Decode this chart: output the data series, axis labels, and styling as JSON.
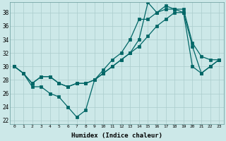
{
  "xlabel": "Humidex (Indice chaleur)",
  "background_color": "#cce8e8",
  "grid_color": "#aacccc",
  "line_color": "#006666",
  "xlim": [
    -0.5,
    23.5
  ],
  "ylim": [
    21.5,
    39.5
  ],
  "yticks": [
    22,
    24,
    26,
    28,
    30,
    32,
    34,
    36,
    38
  ],
  "xticks": [
    0,
    1,
    2,
    3,
    4,
    5,
    6,
    7,
    8,
    9,
    10,
    11,
    12,
    13,
    14,
    15,
    16,
    17,
    18,
    19,
    20,
    21,
    22,
    23
  ],
  "series1_x": [
    0,
    1,
    2,
    3,
    4,
    5,
    6,
    7,
    8,
    9,
    10,
    11,
    12,
    13,
    14,
    15,
    16,
    17,
    18,
    19,
    20,
    21,
    22,
    23
  ],
  "series1_y": [
    30,
    29,
    27,
    27,
    26,
    25.5,
    24,
    22.5,
    23.5,
    28,
    29.5,
    31,
    32,
    34,
    37,
    37,
    38,
    38.5,
    38.5,
    38,
    33,
    29,
    30,
    31
  ],
  "series2_x": [
    0,
    1,
    2,
    3,
    4,
    5,
    6,
    7,
    8,
    9,
    10,
    11,
    12,
    13,
    14,
    15,
    16,
    17,
    18,
    19,
    20,
    21,
    22,
    23
  ],
  "series2_y": [
    30,
    29,
    27.5,
    28.5,
    28.5,
    27.5,
    27,
    27.5,
    27.5,
    28,
    29,
    30,
    31,
    32,
    34,
    39.5,
    38,
    39,
    38.5,
    38.5,
    33.5,
    31.5,
    31,
    31
  ],
  "series3_x": [
    0,
    1,
    2,
    3,
    4,
    5,
    6,
    7,
    8,
    9,
    10,
    11,
    12,
    13,
    14,
    15,
    16,
    17,
    18,
    19,
    20,
    21,
    22,
    23
  ],
  "series3_y": [
    30,
    29,
    27.5,
    28.5,
    28.5,
    27.5,
    27,
    27.5,
    27.5,
    28,
    29,
    30,
    31,
    32,
    33,
    34.5,
    36,
    37,
    38,
    38,
    30,
    29,
    30,
    31
  ]
}
